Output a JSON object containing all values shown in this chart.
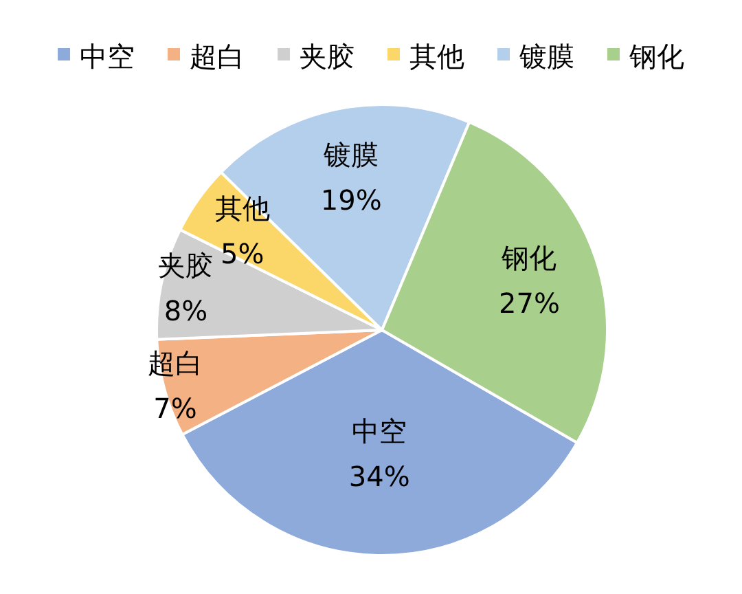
{
  "chart_data": {
    "type": "pie",
    "categories": [
      "中空",
      "超白",
      "夹胶",
      "其他",
      "镀膜",
      "钢化"
    ],
    "values": [
      34,
      7,
      8,
      5,
      19,
      27
    ],
    "value_labels": [
      "34%",
      "7%",
      "8%",
      "5%",
      "19%",
      "27%"
    ],
    "colors": [
      "#8eaadb",
      "#f4b183",
      "#cfcfcf",
      "#fbd769",
      "#b4cfec",
      "#a8cf8c"
    ],
    "legend": "top"
  }
}
